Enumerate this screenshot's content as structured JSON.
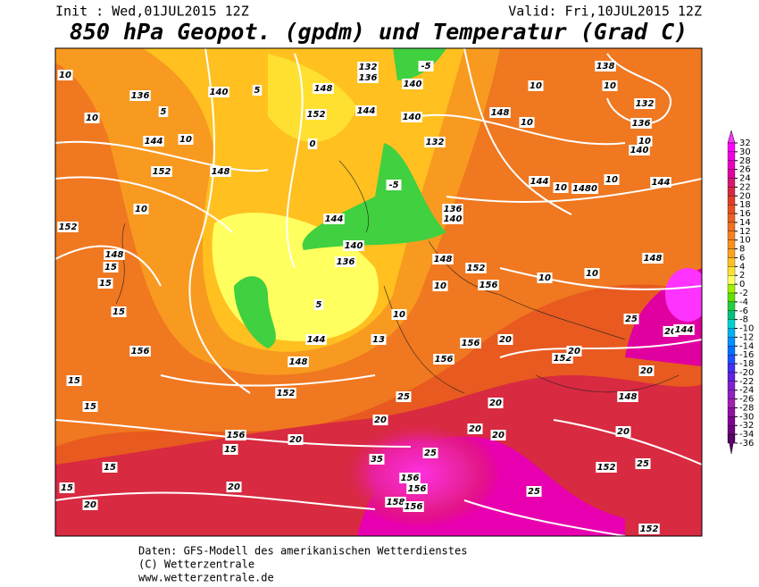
{
  "header": {
    "init": "Init : Wed,01JUL2015  12Z",
    "valid": "Valid: Fri,10JUL2015  12Z",
    "title": "850 hPa Geopot. (gpdm) und Temperatur (Grad C)"
  },
  "footer": [
    "Daten: GFS-Modell des amerikanischen Wetterdienstes",
    "(C) Wetterzentrale",
    "www.wetterzentrale.de"
  ],
  "colorbar": {
    "ticks": [
      32,
      30,
      28,
      26,
      24,
      22,
      20,
      18,
      16,
      14,
      12,
      10,
      8,
      6,
      4,
      2,
      0,
      -2,
      -4,
      -6,
      -8,
      -10,
      -12,
      -14,
      -16,
      -18,
      -20,
      -22,
      -24,
      -26,
      -28,
      -30,
      -32,
      -34,
      -36
    ],
    "colors": [
      "#ff33ff",
      "#ff00ff",
      "#f000e0",
      "#e800c0",
      "#e000a0",
      "#d81870",
      "#d82840",
      "#e03c28",
      "#e85020",
      "#ec6020",
      "#f07020",
      "#f48020",
      "#f89020",
      "#fca020",
      "#ffc020",
      "#ffe030",
      "#ffff60",
      "#a0f000",
      "#60e000",
      "#20d040",
      "#00c080",
      "#00d0d0",
      "#00b0f0",
      "#0090ff",
      "#0070ff",
      "#2050ff",
      "#4030f0",
      "#6020e0",
      "#8020d0",
      "#9020c0",
      "#a020b0",
      "#9010a0",
      "#800090",
      "#700080",
      "#600070"
    ]
  },
  "contour_labels": [
    "10",
    "136",
    "140",
    "5",
    "148",
    "136",
    "132",
    "140",
    "-5",
    "138",
    "10",
    "10",
    "132",
    "136",
    "10",
    "140",
    "5",
    "10",
    "144",
    "10",
    "152",
    "0",
    "144",
    "140",
    "132",
    "148",
    "10",
    "152",
    "148",
    "144",
    "10",
    "1480",
    "10",
    "144",
    "-5",
    "10",
    "152",
    "148",
    "15",
    "136",
    "140",
    "144",
    "140",
    "136",
    "148",
    "152",
    "156",
    "10",
    "10",
    "10",
    "148",
    "15",
    "15",
    "5",
    "10",
    "144",
    "148",
    "156",
    "152",
    "13",
    "156",
    "20",
    "156",
    "152",
    "20",
    "25",
    "20",
    "144",
    "15",
    "15",
    "25",
    "20",
    "148",
    "20",
    "20",
    "156",
    "20",
    "20",
    "20",
    "15",
    "20",
    "15",
    "15",
    "20",
    "20",
    "35",
    "25",
    "156",
    "156",
    "158",
    "156",
    "152",
    "25",
    "25",
    "152"
  ]
}
